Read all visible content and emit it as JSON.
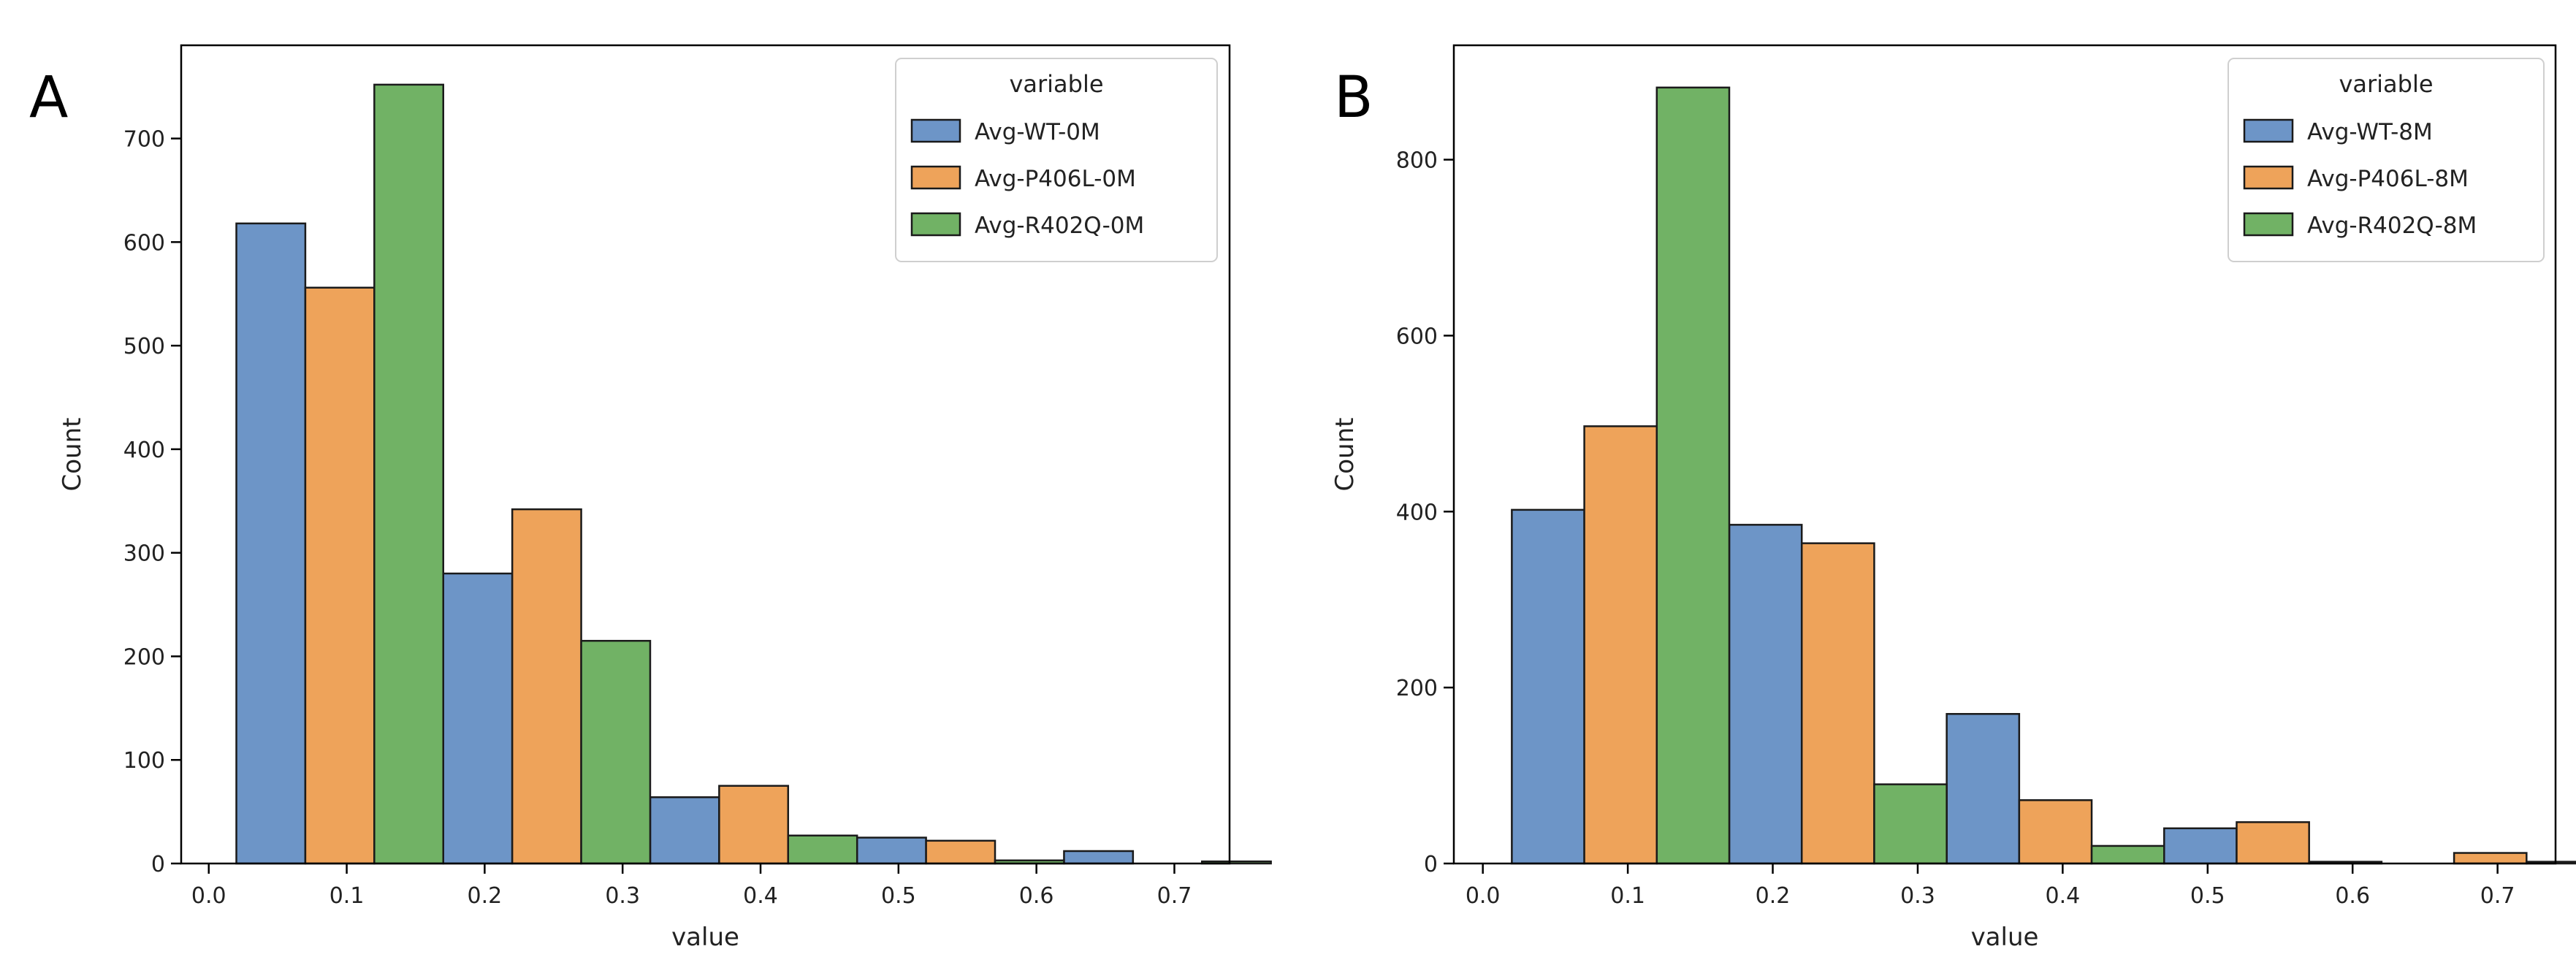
{
  "chart_data": [
    {
      "type": "bar",
      "panel_label": "A",
      "xlabel": "value",
      "ylabel": "Count",
      "xlim": [
        -0.02,
        0.74
      ],
      "ylim": [
        0,
        790
      ],
      "xticks": [
        "0.0",
        "0.1",
        "0.2",
        "0.3",
        "0.4",
        "0.5",
        "0.6",
        "0.7"
      ],
      "yticks": [
        "0",
        "100",
        "200",
        "300",
        "400",
        "500",
        "600",
        "700"
      ],
      "bin_starts": [
        0.02,
        0.17,
        0.32,
        0.47,
        0.62
      ],
      "bin_width": 0.15,
      "legend": {
        "title": "variable",
        "position": "top-right"
      },
      "series": [
        {
          "name": "Avg-WT-0M",
          "color": "#6d95c7",
          "values": [
            618,
            280,
            64,
            25,
            12
          ]
        },
        {
          "name": "Avg-P406L-0M",
          "color": "#eea35a",
          "values": [
            556,
            342,
            75,
            22,
            0
          ]
        },
        {
          "name": "Avg-R402Q-0M",
          "color": "#71b265",
          "values": [
            752,
            215,
            27,
            3,
            2
          ]
        }
      ]
    },
    {
      "type": "bar",
      "panel_label": "B",
      "xlabel": "value",
      "ylabel": "Count",
      "xlim": [
        -0.02,
        0.74
      ],
      "ylim": [
        0,
        930
      ],
      "xticks": [
        "0.0",
        "0.1",
        "0.2",
        "0.3",
        "0.4",
        "0.5",
        "0.6",
        "0.7"
      ],
      "yticks": [
        "0",
        "200",
        "400",
        "600",
        "800"
      ],
      "bin_starts": [
        0.02,
        0.17,
        0.32,
        0.47,
        0.62
      ],
      "bin_width": 0.15,
      "legend": {
        "title": "variable",
        "position": "top-right"
      },
      "series": [
        {
          "name": "Avg-WT-8M",
          "color": "#6d95c7",
          "values": [
            402,
            385,
            170,
            40,
            0
          ]
        },
        {
          "name": "Avg-P406L-8M",
          "color": "#eea35a",
          "values": [
            497,
            364,
            72,
            47,
            12
          ]
        },
        {
          "name": "Avg-R402Q-8M",
          "color": "#71b265",
          "values": [
            882,
            90,
            20,
            2,
            2
          ]
        }
      ]
    }
  ]
}
